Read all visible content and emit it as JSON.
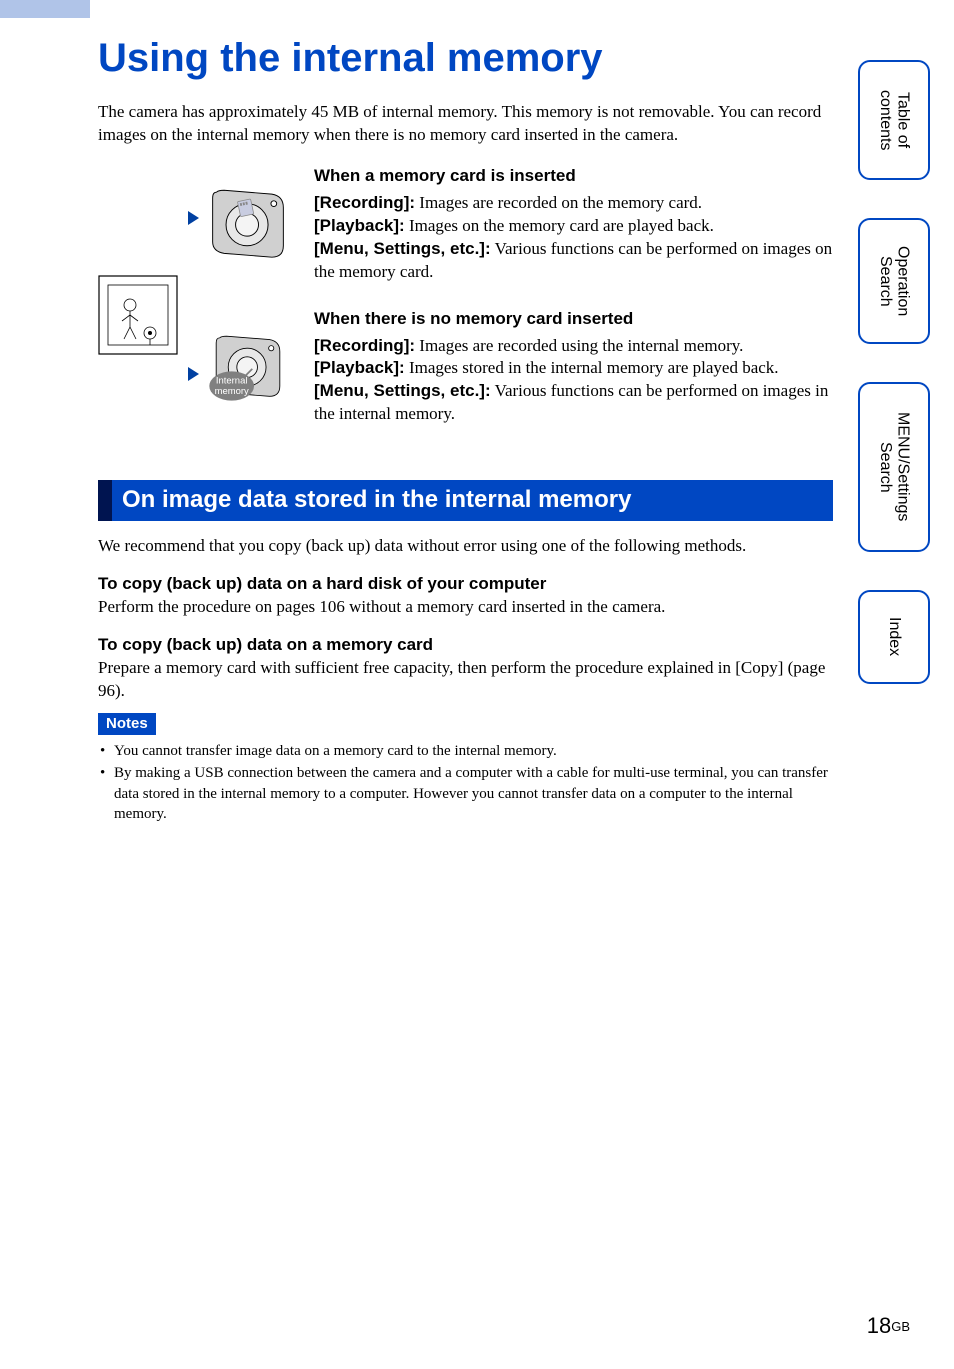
{
  "colors": {
    "accent_blue": "#0047c2",
    "dark_blue": "#001450",
    "light_blue_header": "#b0c4e8",
    "triangle": "#0040a1"
  },
  "typography": {
    "title_font": "Arial",
    "title_size_pt": 30,
    "body_font": "Times New Roman",
    "body_size_pt": 13
  },
  "title": "Using the internal memory",
  "intro": "The camera has approximately 45 MB of internal memory. This memory is not removable. You can record images on the internal memory when there is no memory card inserted in the camera.",
  "diagram": {
    "internal_memory_label_line1": "Internal",
    "internal_memory_label_line2": "memory"
  },
  "inserted": {
    "heading": "When a memory card is inserted",
    "rec_label": "[Recording]:",
    "rec_text": " Images are recorded on the memory card.",
    "play_label": "[Playback]:",
    "play_text": " Images on the memory card are played back.",
    "menu_label": "[Menu, Settings, etc.]:",
    "menu_text": " Various functions can be performed on images on the memory card."
  },
  "not_inserted": {
    "heading": "When there is no memory card inserted",
    "rec_label": "[Recording]:",
    "rec_text": " Images are recorded using the internal memory.",
    "play_label": "[Playback]:",
    "play_text": " Images stored in the internal memory are played back.",
    "menu_label": "[Menu, Settings, etc.]:",
    "menu_text": " Various functions can be performed on images in the internal memory."
  },
  "section_bar": "On image data stored in the internal memory",
  "recommend": "We recommend that you copy (back up) data without error using one of the following methods.",
  "hd": {
    "heading": "To copy (back up) data on a hard disk of your computer",
    "text": "Perform the procedure on pages 106 without a memory card inserted in the camera."
  },
  "mc": {
    "heading": "To copy (back up) data on a memory card",
    "text": "Prepare a memory card with sufficient free capacity, then perform the procedure explained in [Copy] (page 96)."
  },
  "notes_label": "Notes",
  "notes": [
    "You cannot transfer image data on a memory card to the internal memory.",
    "By making a USB connection between the camera and a computer with a cable for multi-use terminal, you can transfer data stored in the internal memory to a computer. However you cannot transfer data on a computer to the internal memory."
  ],
  "tabs": {
    "toc": "Table of\ncontents",
    "op": "Operation\nSearch",
    "menu": "MENU/Settings\nSearch",
    "index": "Index"
  },
  "page": {
    "num": "18",
    "suffix": "GB"
  }
}
